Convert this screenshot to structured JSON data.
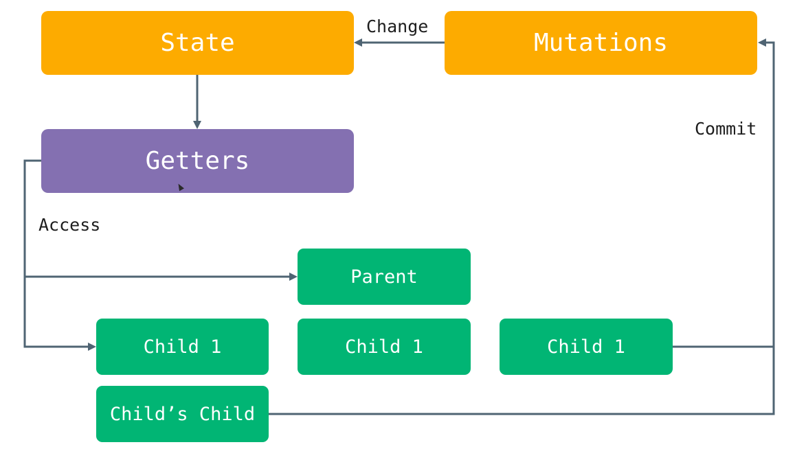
{
  "colors": {
    "state": "#fdab00",
    "mutations": "#fdab00",
    "getters": "#8470b1",
    "component": "#01b574",
    "edge": "#4f6473"
  },
  "nodes": {
    "state": "State",
    "mutations": "Mutations",
    "getters": "Getters",
    "parent": "Parent",
    "child_a": "Child 1",
    "child_b": "Child 1",
    "child_c": "Child 1",
    "childs_child": "Child’s Child"
  },
  "edges": {
    "change": "Change",
    "commit": "Commit",
    "access": "Access"
  }
}
